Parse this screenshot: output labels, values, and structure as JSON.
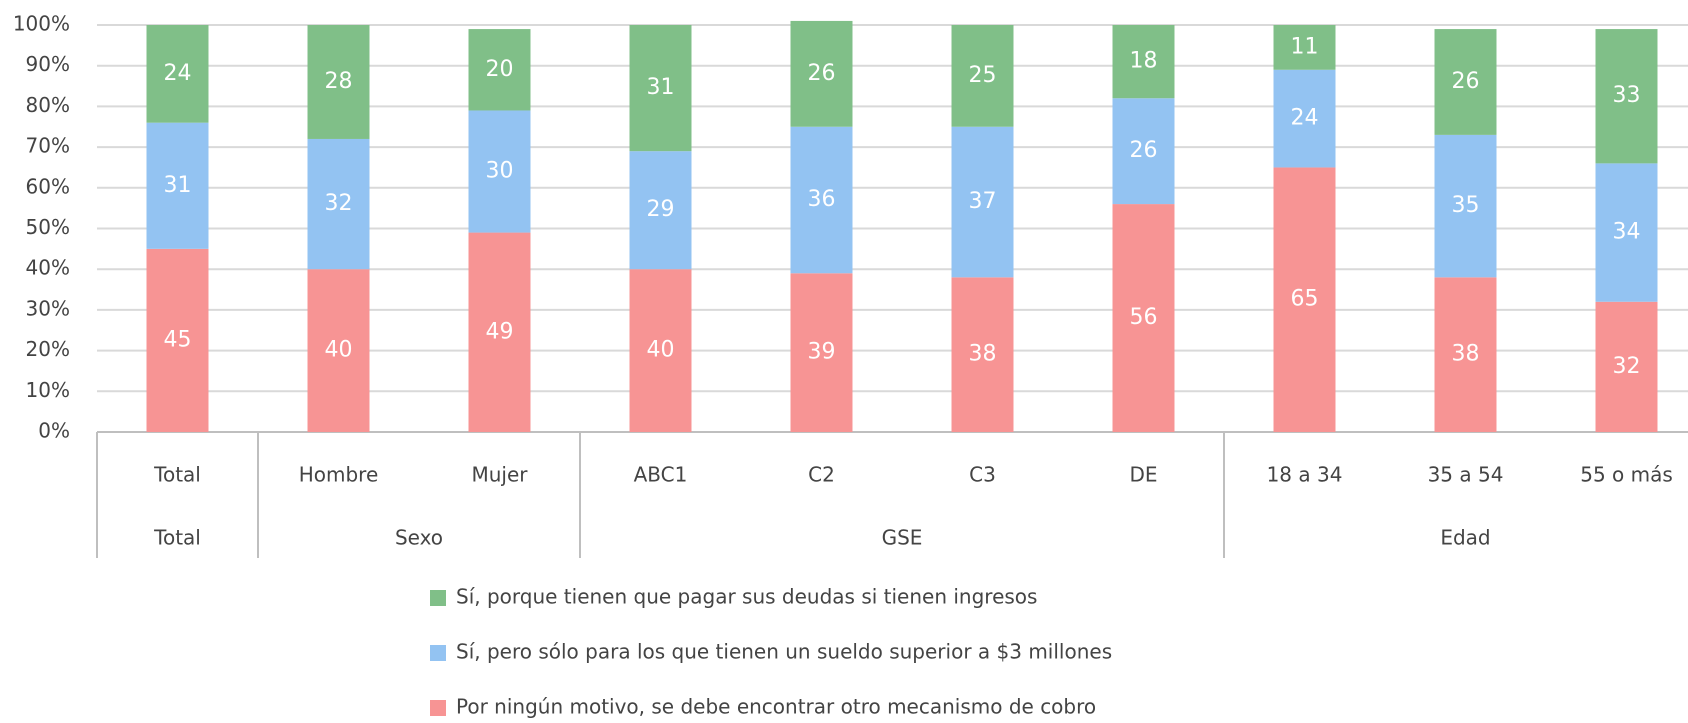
{
  "chart_data": {
    "type": "stacked_bar",
    "categories": [
      "Total",
      "Hombre",
      "Mujer",
      "ABC1",
      "C2",
      "C3",
      "DE",
      "18 a 34",
      "35 a 54",
      "55 o más"
    ],
    "groups": [
      {
        "label": "Total",
        "from": 0,
        "to": 0
      },
      {
        "label": "Sexo",
        "from": 1,
        "to": 2
      },
      {
        "label": "GSE",
        "from": 3,
        "to": 6
      },
      {
        "label": "Edad",
        "from": 7,
        "to": 9
      }
    ],
    "series": [
      {
        "name": "Sí, porque tienen que pagar sus deudas si tienen ingresos",
        "color": "#80bf88",
        "values": [
          24,
          28,
          20,
          31,
          26,
          25,
          18,
          11,
          26,
          33
        ]
      },
      {
        "name": "Sí, pero sólo para los que tienen un sueldo superior a $3 millones",
        "color": "#93c3f2",
        "values": [
          31,
          32,
          30,
          29,
          36,
          37,
          26,
          24,
          35,
          34
        ]
      },
      {
        "name": "Por ningún motivo, se debe encontrar otro mecanismo de cobro",
        "color": "#f79494",
        "values": [
          45,
          40,
          49,
          40,
          39,
          38,
          56,
          65,
          38,
          32
        ]
      }
    ],
    "ylim": [
      0,
      100
    ],
    "yticks": [
      {
        "value": 0,
        "label": "0%"
      },
      {
        "value": 10,
        "label": "10%"
      },
      {
        "value": 20,
        "label": "20%"
      },
      {
        "value": 30,
        "label": "30%"
      },
      {
        "value": 40,
        "label": "40%"
      },
      {
        "value": 50,
        "label": "50%"
      },
      {
        "value": 60,
        "label": "60%"
      },
      {
        "value": 70,
        "label": "70%"
      },
      {
        "value": 80,
        "label": "80%"
      },
      {
        "value": 90,
        "label": "90%"
      },
      {
        "value": 100,
        "label": "100%"
      }
    ],
    "grid": true,
    "legend": "bottom"
  }
}
